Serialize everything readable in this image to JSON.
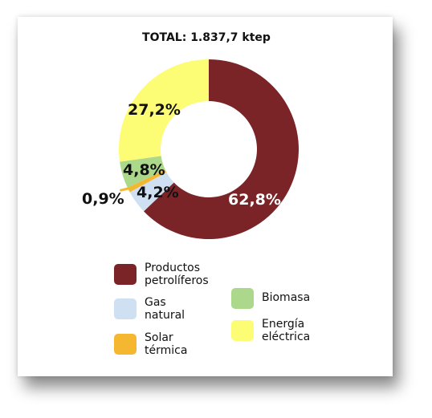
{
  "title": "TOTAL: 1.837,7 ktep",
  "chart_data": {
    "type": "pie",
    "variant": "donut",
    "title": "TOTAL: 1.837,7 ktep",
    "categories": [
      "Productos petrolíferos",
      "Gas natural",
      "Solar térmica",
      "Biomasa",
      "Energía eléctrica"
    ],
    "values": [
      62.8,
      4.2,
      0.9,
      4.8,
      27.2
    ],
    "data_labels": [
      "62,8%",
      "4,2%",
      "0,9%",
      "4,8%",
      "27,2%"
    ],
    "colors": [
      "#7a2428",
      "#cfe0f2",
      "#f5b630",
      "#abd88a",
      "#fdfd75"
    ],
    "legend_position": "bottom"
  },
  "legend": [
    {
      "line1": "Productos",
      "line2": "petrolíferos",
      "color": "#7a2428"
    },
    {
      "line1": "Gas",
      "line2": "natural",
      "color": "#cfe0f2"
    },
    {
      "line1": "Solar",
      "line2": "térmica",
      "color": "#f5b630"
    },
    {
      "line1": "Biomasa",
      "line2": "",
      "color": "#abd88a"
    },
    {
      "line1": "Energía",
      "line2": "eléctrica",
      "color": "#fdfd75"
    }
  ]
}
